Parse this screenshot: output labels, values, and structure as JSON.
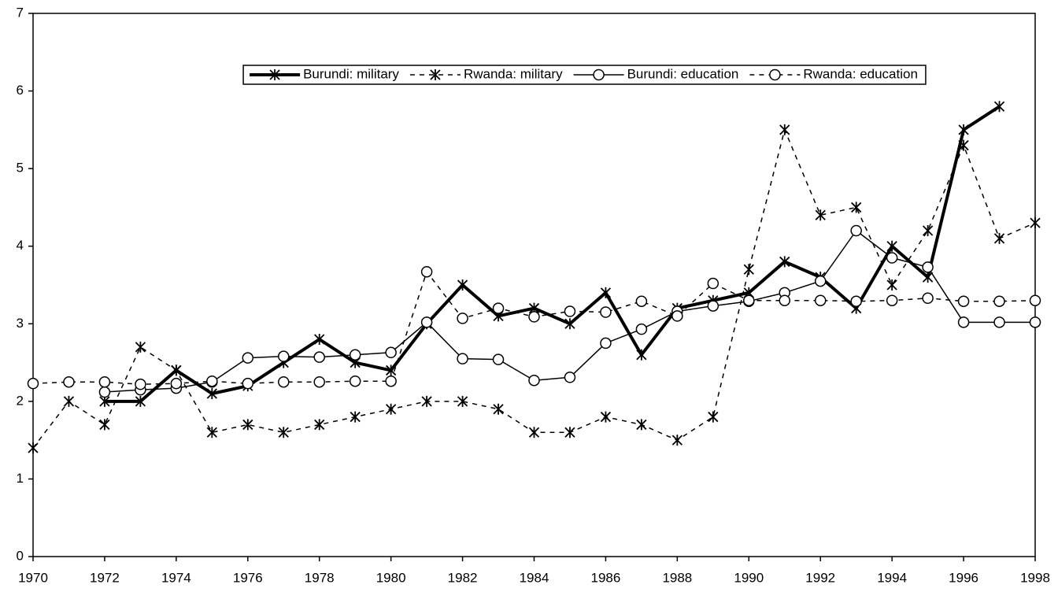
{
  "chart_data": {
    "type": "line",
    "x": [
      1970,
      1971,
      1972,
      1973,
      1974,
      1975,
      1976,
      1977,
      1978,
      1979,
      1980,
      1981,
      1982,
      1983,
      1984,
      1985,
      1986,
      1987,
      1988,
      1989,
      1990,
      1991,
      1992,
      1993,
      1994,
      1995,
      1996,
      1997,
      1998
    ],
    "series": [
      {
        "name": "Burundi: military",
        "color": "#000000",
        "line_width": 4,
        "dash": false,
        "marker": "star",
        "values": [
          null,
          null,
          2.0,
          2.0,
          2.4,
          2.1,
          2.2,
          2.5,
          2.8,
          2.5,
          2.4,
          3.0,
          3.5,
          3.1,
          3.2,
          3.0,
          3.4,
          2.6,
          3.2,
          3.3,
          3.4,
          3.8,
          3.6,
          3.2,
          4.0,
          3.6,
          5.5,
          5.8,
          null
        ]
      },
      {
        "name": "Rwanda: military",
        "color": "#000000",
        "line_width": 1.5,
        "dash": true,
        "marker": "star",
        "values": [
          1.4,
          2.0,
          1.7,
          2.7,
          2.4,
          1.6,
          1.7,
          1.6,
          1.7,
          1.8,
          1.9,
          2.0,
          2.0,
          1.9,
          1.6,
          1.6,
          1.8,
          1.7,
          1.5,
          1.8,
          3.7,
          5.5,
          4.4,
          4.5,
          3.5,
          4.2,
          5.3,
          4.1,
          4.3
        ]
      },
      {
        "name": "Burundi: education",
        "color": "#000000",
        "line_width": 1.5,
        "dash": false,
        "marker": "circle",
        "values": [
          null,
          null,
          2.12,
          2.15,
          2.17,
          2.25,
          2.56,
          2.58,
          2.57,
          2.6,
          2.63,
          3.02,
          2.55,
          2.54,
          2.27,
          2.31,
          2.75,
          2.93,
          3.16,
          3.23,
          3.29,
          3.4,
          3.55,
          4.2,
          3.85,
          3.73,
          3.02,
          3.02,
          3.02
        ]
      },
      {
        "name": "Rwanda: education",
        "color": "#000000",
        "line_width": 1.5,
        "dash": true,
        "marker": "circle",
        "values": [
          2.23,
          2.25,
          2.25,
          2.22,
          2.23,
          2.26,
          2.23,
          2.25,
          2.25,
          2.26,
          2.26,
          3.67,
          3.07,
          3.2,
          3.09,
          3.16,
          3.15,
          3.29,
          3.1,
          3.52,
          3.3,
          3.3,
          3.3,
          3.29,
          3.3,
          3.33,
          3.29,
          3.29,
          3.3
        ]
      }
    ],
    "xlim": [
      1970,
      1998
    ],
    "xticks": [
      1970,
      1972,
      1974,
      1976,
      1978,
      1980,
      1982,
      1984,
      1986,
      1988,
      1990,
      1992,
      1994,
      1996,
      1998
    ],
    "ylim": [
      0,
      7
    ],
    "yticks": [
      0,
      1,
      2,
      3,
      4,
      5,
      6,
      7
    ],
    "grid": false,
    "legend": "top"
  }
}
